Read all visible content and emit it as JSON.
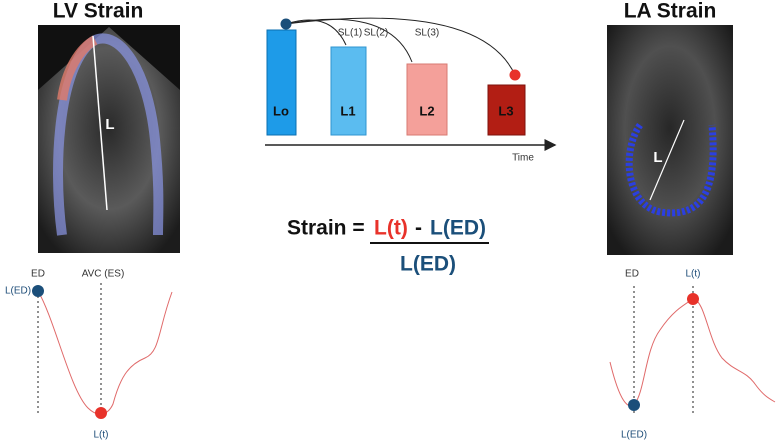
{
  "lv": {
    "title": "LV Strain",
    "image_label": "L",
    "curve": {
      "ed": "ED",
      "es": "AVC (ES)",
      "start": "L(ED)",
      "end": "L(t)"
    }
  },
  "la": {
    "title": "LA Strain",
    "image_label": "L",
    "curve": {
      "ed": "ED",
      "peak": "L(t)",
      "start": "L(ED)"
    }
  },
  "timeline": {
    "bars": [
      "Lo",
      "L1",
      "L2",
      "L3"
    ],
    "arcs": [
      "SL(1)",
      "SL(2)",
      "SL(3)"
    ],
    "axis": "Time"
  },
  "formula": {
    "lhs": "Strain =",
    "numerator": [
      "L(t)",
      "-",
      "L(ED)"
    ],
    "denominator": "L(ED)"
  }
}
